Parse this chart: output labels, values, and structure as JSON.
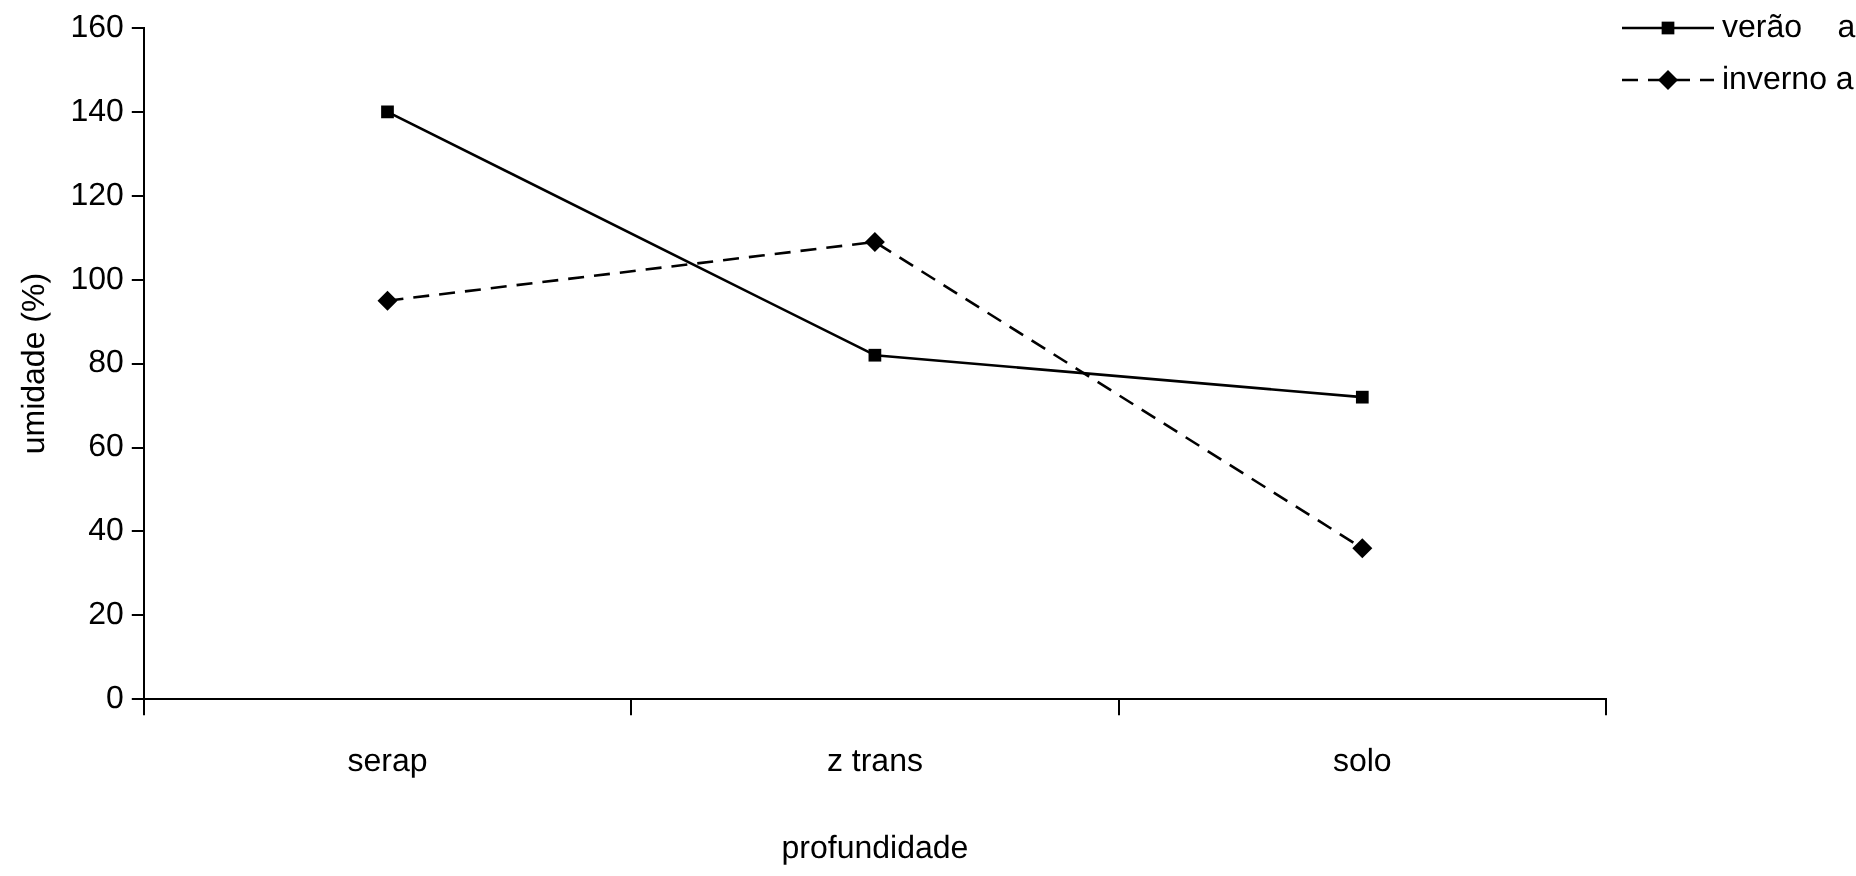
{
  "chart_data": {
    "type": "line",
    "xlabel": "profundidade",
    "ylabel": "umidade (%)",
    "categories": [
      "serap",
      "z trans",
      "solo"
    ],
    "series": [
      {
        "name": "verão    a",
        "color": "#000000",
        "values": [
          140,
          82,
          72
        ],
        "marker": "square",
        "line_style": "solid"
      },
      {
        "name": "inverno a",
        "color": "#000000",
        "values": [
          95,
          109,
          36
        ],
        "marker": "diamond",
        "line_style": "dashed"
      }
    ],
    "ylim": [
      0,
      160
    ],
    "yticks": [
      0,
      20,
      40,
      60,
      80,
      100,
      120,
      140,
      160
    ],
    "grid": false,
    "legend": "top right"
  }
}
